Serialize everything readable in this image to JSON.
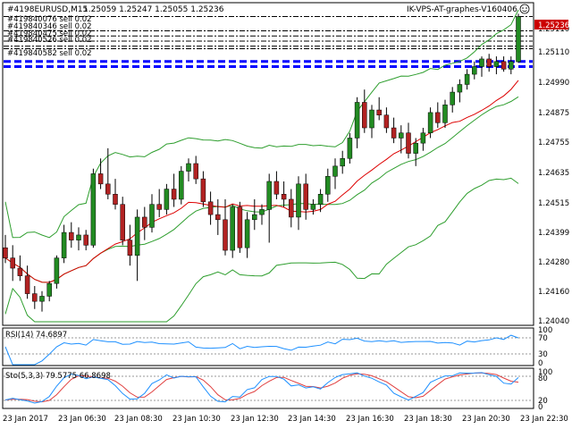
{
  "header": {
    "symbol_line": "#4198EURUSD,M15",
    "ohlc": "1.25059 1.25247 1.25055 1.25236",
    "expert_name": "IK-VPS-AT-graphes-V160406"
  },
  "order_labels": [
    "#419840076 sell 0.02",
    "#419840346 sell 0.02",
    "#419840475 sell 0.02",
    "#419840526 sell 0.02",
    "#419840582 sell 0.02"
  ],
  "price_axis": {
    "labels": [
      "1.25236",
      "1.25110",
      "1.24990",
      "1.24875",
      "1.24755",
      "1.24635",
      "1.24515",
      "1.24399",
      "1.24280",
      "1.24160",
      "1.24040"
    ],
    "current_price": "1.25236"
  },
  "time_axis": {
    "labels": [
      "23 Jan 2017",
      "23 Jan 06:30",
      "23 Jan 08:30",
      "23 Jan 10:30",
      "23 Jan 12:30",
      "23 Jan 14:30",
      "23 Jan 16:30",
      "23 Jan 18:30",
      "23 Jan 20:30",
      "23 Jan 22:30"
    ]
  },
  "rsi": {
    "title": "RSI(14) 74.6897",
    "levels": [
      "100",
      "70",
      "30",
      "0"
    ],
    "value": 74.6897
  },
  "stoch": {
    "title": "Sto(5,3,3) 79.5775 66.8698",
    "levels": [
      "100",
      "80",
      "20",
      "0"
    ],
    "main": 79.5775,
    "signal": 66.8698
  },
  "colors": {
    "bull": "#228B22",
    "bear": "#B22222",
    "bands": "#2E9E2E",
    "ma": "#DD0000",
    "rsi": "#1E90FF",
    "stoch_main": "#1E90FF",
    "stoch_signal": "#E04040",
    "orders": "#0000FF",
    "current_price_bg": "#CC0000"
  },
  "chart_data": {
    "type": "candlestick",
    "symbol": "EURUSD",
    "timeframe": "M15",
    "ylim": [
      1.2404,
      1.2528
    ],
    "candles": [
      {
        "o": 1.2433,
        "h": 1.2438,
        "l": 1.2427,
        "c": 1.2429
      },
      {
        "o": 1.2429,
        "h": 1.2434,
        "l": 1.242,
        "c": 1.2425
      },
      {
        "o": 1.2425,
        "h": 1.243,
        "l": 1.242,
        "c": 1.2422
      },
      {
        "o": 1.2422,
        "h": 1.2426,
        "l": 1.2413,
        "c": 1.2415
      },
      {
        "o": 1.2415,
        "h": 1.2418,
        "l": 1.2409,
        "c": 1.2412
      },
      {
        "o": 1.2412,
        "h": 1.2416,
        "l": 1.2408,
        "c": 1.2414
      },
      {
        "o": 1.2414,
        "h": 1.242,
        "l": 1.2412,
        "c": 1.2419
      },
      {
        "o": 1.2419,
        "h": 1.243,
        "l": 1.2417,
        "c": 1.2429
      },
      {
        "o": 1.2429,
        "h": 1.2442,
        "l": 1.2427,
        "c": 1.2439
      },
      {
        "o": 1.2439,
        "h": 1.2443,
        "l": 1.2433,
        "c": 1.2436
      },
      {
        "o": 1.2436,
        "h": 1.2441,
        "l": 1.2432,
        "c": 1.2438
      },
      {
        "o": 1.2438,
        "h": 1.244,
        "l": 1.2432,
        "c": 1.2434
      },
      {
        "o": 1.2434,
        "h": 1.2464,
        "l": 1.2433,
        "c": 1.2462
      },
      {
        "o": 1.2462,
        "h": 1.2468,
        "l": 1.2456,
        "c": 1.2458
      },
      {
        "o": 1.2458,
        "h": 1.2472,
        "l": 1.2452,
        "c": 1.2454
      },
      {
        "o": 1.2454,
        "h": 1.246,
        "l": 1.2448,
        "c": 1.245
      },
      {
        "o": 1.245,
        "h": 1.2453,
        "l": 1.2434,
        "c": 1.2436
      },
      {
        "o": 1.2436,
        "h": 1.2442,
        "l": 1.2426,
        "c": 1.243
      },
      {
        "o": 1.243,
        "h": 1.2448,
        "l": 1.242,
        "c": 1.2445
      },
      {
        "o": 1.2445,
        "h": 1.2449,
        "l": 1.2436,
        "c": 1.2441
      },
      {
        "o": 1.2441,
        "h": 1.2454,
        "l": 1.2439,
        "c": 1.245
      },
      {
        "o": 1.245,
        "h": 1.2456,
        "l": 1.2445,
        "c": 1.2448
      },
      {
        "o": 1.2448,
        "h": 1.2458,
        "l": 1.2446,
        "c": 1.2456
      },
      {
        "o": 1.2456,
        "h": 1.2462,
        "l": 1.2449,
        "c": 1.2452
      },
      {
        "o": 1.2452,
        "h": 1.2465,
        "l": 1.245,
        "c": 1.2463
      },
      {
        "o": 1.2463,
        "h": 1.2468,
        "l": 1.2459,
        "c": 1.2466
      },
      {
        "o": 1.2466,
        "h": 1.2469,
        "l": 1.2458,
        "c": 1.246
      },
      {
        "o": 1.246,
        "h": 1.2463,
        "l": 1.2449,
        "c": 1.2451
      },
      {
        "o": 1.2451,
        "h": 1.2455,
        "l": 1.2442,
        "c": 1.2446
      },
      {
        "o": 1.2446,
        "h": 1.2452,
        "l": 1.2438,
        "c": 1.2444
      },
      {
        "o": 1.2444,
        "h": 1.2452,
        "l": 1.243,
        "c": 1.2432
      },
      {
        "o": 1.2432,
        "h": 1.245,
        "l": 1.2429,
        "c": 1.2449
      },
      {
        "o": 1.2449,
        "h": 1.2451,
        "l": 1.2431,
        "c": 1.2433
      },
      {
        "o": 1.2433,
        "h": 1.2447,
        "l": 1.2429,
        "c": 1.2444
      },
      {
        "o": 1.2444,
        "h": 1.2452,
        "l": 1.244,
        "c": 1.2446
      },
      {
        "o": 1.2446,
        "h": 1.245,
        "l": 1.2442,
        "c": 1.2448
      },
      {
        "o": 1.2448,
        "h": 1.2462,
        "l": 1.2435,
        "c": 1.2459
      },
      {
        "o": 1.2459,
        "h": 1.2463,
        "l": 1.2452,
        "c": 1.2454
      },
      {
        "o": 1.2454,
        "h": 1.2459,
        "l": 1.2449,
        "c": 1.2452
      },
      {
        "o": 1.2452,
        "h": 1.2456,
        "l": 1.2441,
        "c": 1.2445
      },
      {
        "o": 1.2445,
        "h": 1.2461,
        "l": 1.244,
        "c": 1.2458
      },
      {
        "o": 1.2458,
        "h": 1.2462,
        "l": 1.2444,
        "c": 1.2448
      },
      {
        "o": 1.2448,
        "h": 1.2452,
        "l": 1.2446,
        "c": 1.245
      },
      {
        "o": 1.245,
        "h": 1.2456,
        "l": 1.2447,
        "c": 1.2454
      },
      {
        "o": 1.2454,
        "h": 1.2464,
        "l": 1.2451,
        "c": 1.2461
      },
      {
        "o": 1.2461,
        "h": 1.2468,
        "l": 1.2456,
        "c": 1.2465
      },
      {
        "o": 1.2465,
        "h": 1.2471,
        "l": 1.2462,
        "c": 1.2468
      },
      {
        "o": 1.2468,
        "h": 1.2478,
        "l": 1.2466,
        "c": 1.2476
      },
      {
        "o": 1.2476,
        "h": 1.2492,
        "l": 1.2472,
        "c": 1.249
      },
      {
        "o": 1.249,
        "h": 1.2495,
        "l": 1.2478,
        "c": 1.248
      },
      {
        "o": 1.248,
        "h": 1.2489,
        "l": 1.2476,
        "c": 1.2487
      },
      {
        "o": 1.2487,
        "h": 1.2492,
        "l": 1.2483,
        "c": 1.2485
      },
      {
        "o": 1.2485,
        "h": 1.2488,
        "l": 1.2478,
        "c": 1.248
      },
      {
        "o": 1.248,
        "h": 1.2484,
        "l": 1.2474,
        "c": 1.2476
      },
      {
        "o": 1.2476,
        "h": 1.2481,
        "l": 1.247,
        "c": 1.2478
      },
      {
        "o": 1.2478,
        "h": 1.2482,
        "l": 1.2468,
        "c": 1.247
      },
      {
        "o": 1.247,
        "h": 1.2476,
        "l": 1.2465,
        "c": 1.2474
      },
      {
        "o": 1.2474,
        "h": 1.248,
        "l": 1.2471,
        "c": 1.2478
      },
      {
        "o": 1.2478,
        "h": 1.2488,
        "l": 1.2476,
        "c": 1.2486
      },
      {
        "o": 1.2486,
        "h": 1.249,
        "l": 1.248,
        "c": 1.2482
      },
      {
        "o": 1.2482,
        "h": 1.2491,
        "l": 1.248,
        "c": 1.2489
      },
      {
        "o": 1.2489,
        "h": 1.2496,
        "l": 1.2486,
        "c": 1.2494
      },
      {
        "o": 1.2494,
        "h": 1.2499,
        "l": 1.249,
        "c": 1.2497
      },
      {
        "o": 1.2497,
        "h": 1.2503,
        "l": 1.2495,
        "c": 1.2501
      },
      {
        "o": 1.2501,
        "h": 1.2506,
        "l": 1.2499,
        "c": 1.2504
      },
      {
        "o": 1.2504,
        "h": 1.2508,
        "l": 1.25,
        "c": 1.2507
      },
      {
        "o": 1.2507,
        "h": 1.2509,
        "l": 1.2502,
        "c": 1.2504
      },
      {
        "o": 1.2504,
        "h": 1.2508,
        "l": 1.2501,
        "c": 1.2506
      },
      {
        "o": 1.2506,
        "h": 1.2508,
        "l": 1.2502,
        "c": 1.2503
      },
      {
        "o": 1.2503,
        "h": 1.2508,
        "l": 1.2501,
        "c": 1.2506
      },
      {
        "o": 1.25059,
        "h": 1.25247,
        "l": 1.25055,
        "c": 1.25236
      }
    ],
    "order_prices": [
      1.25236,
      1.2518,
      1.2516,
      1.2514,
      1.2512,
      1.2511,
      1.2506,
      1.2504
    ]
  }
}
